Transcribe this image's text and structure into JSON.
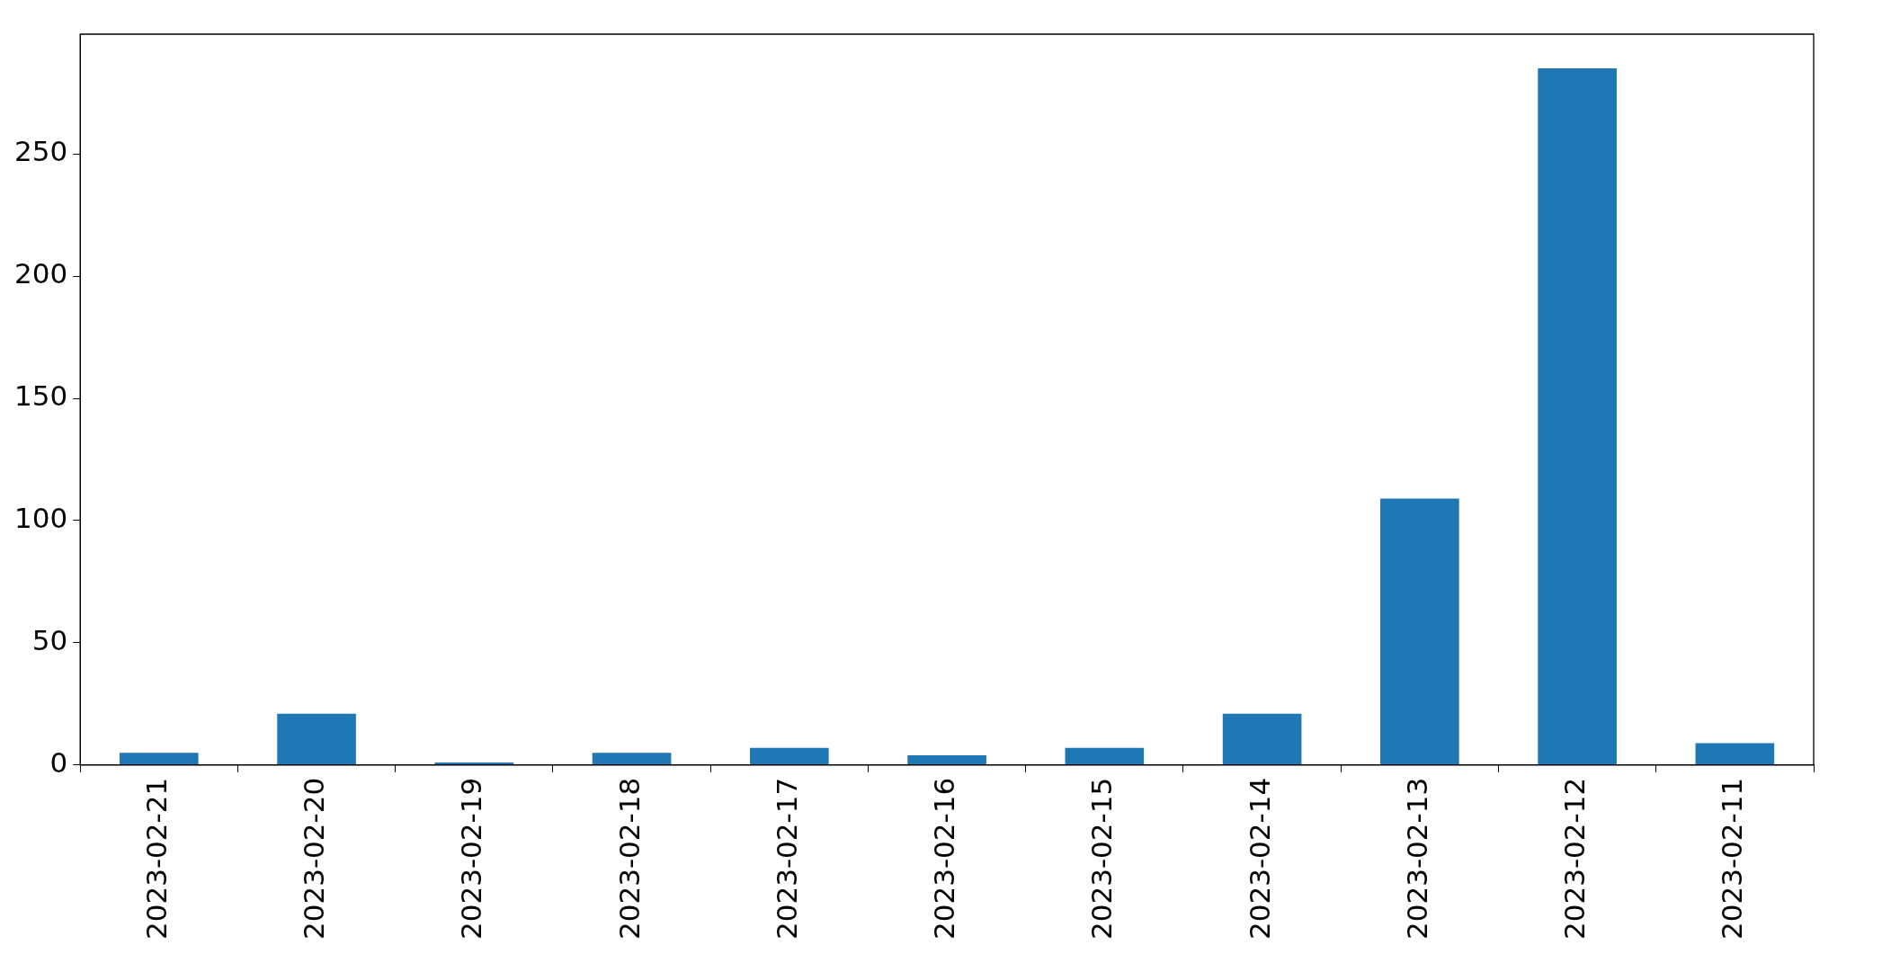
{
  "chart_data": {
    "type": "bar",
    "categories": [
      "2023-02-21",
      "2023-02-20",
      "2023-02-19",
      "2023-02-18",
      "2023-02-17",
      "2023-02-16",
      "2023-02-15",
      "2023-02-14",
      "2023-02-13",
      "2023-02-12",
      "2023-02-11"
    ],
    "values": [
      5,
      21,
      1,
      5,
      7,
      4,
      7,
      21,
      109,
      285,
      9
    ],
    "color": "#1f77b4",
    "ylim": [
      0,
      299
    ],
    "yticks": [
      0,
      50,
      100,
      150,
      200,
      250
    ],
    "grid": false,
    "legend": false
  }
}
